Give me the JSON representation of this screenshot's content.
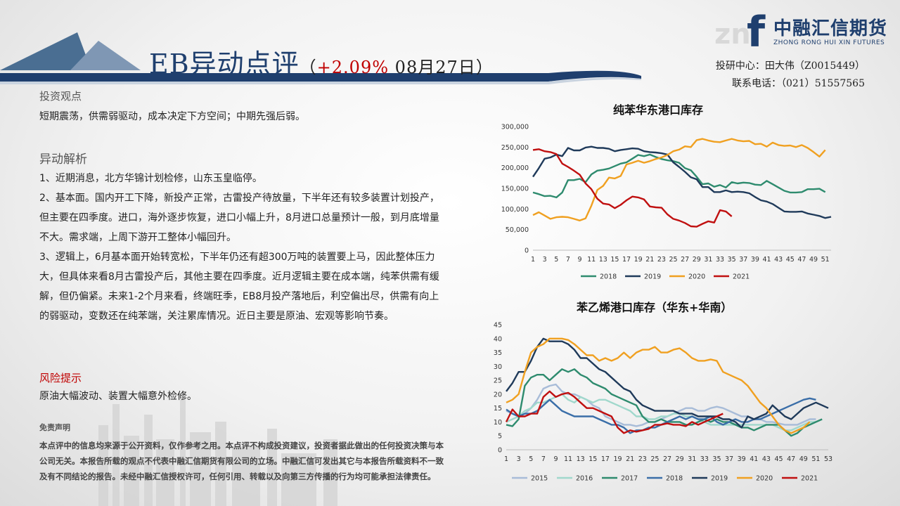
{
  "header": {
    "title": "EB异动点评",
    "paren_open": "（",
    "change": "+2.09%",
    "date": "08月27日",
    "paren_close": "）",
    "colors": {
      "navy": "#1f3f6e",
      "red": "#c00000"
    }
  },
  "logo": {
    "mark": "f",
    "watermark": "zn",
    "cn": "中融汇信期货",
    "en": "ZHONG RONG HUI XIN FUTURES"
  },
  "contact": {
    "line1": "投研中心：田大伟（Z0015449）",
    "line2": "联系电话：（021）51557565"
  },
  "view": {
    "heading": "投资观点",
    "text": "短期震荡，供需弱驱动，成本决定下方空间；中期先强后弱。"
  },
  "analysis": {
    "heading": "异动解析",
    "p1": "1、近期消息，北方华锦计划检修，山东玉皇临停。",
    "p2": "2、基本面。国内开工下降，新投产正常，古雷投产待放量，下半年还有较多装置计划投产，但主要在四季度。进口，海外逐步恢复，进口小幅上升，8月进口总量预计一般，到月底增量不大。需求端，上周下游开工整体小幅回升。",
    "p3": "3、逻辑上，6月基本面开始转宽松，下半年仍还有超300万吨的装置要上马，因此整体压力大，但具体来看8月古雷投产后，其他主要在四季度。近月逻辑主要在成本端，纯苯供需有缓解，但仍偏紧。未来1-2个月来看，终端旺季，EB8月投产落地后，利空偏出尽，供需有向上的弱驱动，变数还在纯苯端，关注累库情况。近日主要是原油、宏观等影响节奏。"
  },
  "risk": {
    "heading": "风险提示",
    "text": "原油大幅波动、装置大幅意外检修。"
  },
  "disclaimer": {
    "heading": "免责声明",
    "text": "本点评中的信息均来源于公开资料，仅作参考之用。本点评不构成投资建议，投资者据此做出的任何投资决策与本公司无关。本报告所载的观点不代表中融汇信期货有限公司的立场。中融汇信可发出其它与本报告所载资料不一致及有不同结论的报告。未经中融汇信授权许可，任何引用、转载以及向第三方传播的行为均可能承担法律责任。"
  },
  "chart_data": [
    {
      "type": "line",
      "title": "纯苯华东港口库存",
      "xlabel": "",
      "ylabel": "",
      "x_ticks": [
        1,
        3,
        5,
        7,
        9,
        11,
        13,
        15,
        17,
        19,
        21,
        23,
        25,
        27,
        29,
        31,
        33,
        35,
        37,
        39,
        41,
        43,
        45,
        47,
        49,
        51
      ],
      "x_range": [
        1,
        52
      ],
      "y_ticks": [
        0,
        50000,
        100000,
        150000,
        200000,
        250000,
        300000
      ],
      "y_tick_labels": [
        "0",
        "50,000",
        "100,000",
        "150,000",
        "200,000",
        "250,000",
        "300,000"
      ],
      "ylim": [
        0,
        300000
      ],
      "legend_position": "bottom",
      "series": [
        {
          "name": "2018",
          "color": "#2e8b6e",
          "values": [
            140000,
            136000,
            131000,
            132000,
            128000,
            140000,
            170000,
            170000,
            173000,
            165000,
            184000,
            193000,
            195000,
            198000,
            204000,
            210000,
            213000,
            222000,
            231000,
            228000,
            232000,
            226000,
            221000,
            218000,
            216000,
            212000,
            199000,
            194000,
            178000,
            160000,
            162000,
            154000,
            158000,
            152000,
            165000,
            162000,
            164000,
            163000,
            159000,
            158000,
            168000,
            160000,
            152000,
            144000,
            140000,
            140000,
            141000,
            148000,
            148000,
            149000,
            141000
          ]
        },
        {
          "name": "2019",
          "color": "#1f3a5a",
          "values": [
            178000,
            199000,
            222000,
            225000,
            232000,
            228000,
            248000,
            242000,
            242000,
            249000,
            251000,
            248000,
            248000,
            246000,
            240000,
            243000,
            245000,
            247000,
            246000,
            240000,
            238000,
            237000,
            235000,
            232000,
            213000,
            202000,
            190000,
            177000,
            172000,
            153000,
            153000,
            141000,
            141000,
            145000,
            141000,
            142000,
            141000,
            138000,
            129000,
            121000,
            118000,
            112000,
            103000,
            94000,
            93000,
            93000,
            94000,
            89000,
            86000,
            83000,
            78000,
            81000
          ]
        },
        {
          "name": "2020",
          "color": "#f0a020",
          "values": [
            85000,
            92000,
            84000,
            76000,
            80000,
            81000,
            80000,
            76000,
            72000,
            77000,
            108000,
            146000,
            156000,
            176000,
            174000,
            180000,
            208000,
            212000,
            217000,
            212000,
            216000,
            221000,
            225000,
            231000,
            240000,
            244000,
            252000,
            250000,
            267000,
            270000,
            266000,
            263000,
            262000,
            266000,
            270000,
            266000,
            264000,
            265000,
            257000,
            258000,
            251000,
            261000,
            255000,
            253000,
            254000,
            250000,
            255000,
            248000,
            238000,
            227000,
            243000
          ]
        },
        {
          "name": "2021",
          "color": "#c01010",
          "values": [
            243000,
            245000,
            240000,
            238000,
            233000,
            210000,
            202000,
            193000,
            183000,
            162000,
            148000,
            125000,
            113000,
            111000,
            102000,
            110000,
            121000,
            130000,
            128000,
            123000,
            106000,
            104000,
            103000,
            87000,
            76000,
            72000,
            66000,
            58000,
            57000,
            64000,
            70000,
            67000,
            97000,
            94000,
            82000
          ]
        }
      ]
    },
    {
      "type": "line",
      "title": "苯乙烯港口库存（华东+华南）",
      "xlabel": "",
      "ylabel": "",
      "x_ticks": [
        1,
        3,
        5,
        7,
        9,
        11,
        13,
        15,
        17,
        19,
        21,
        23,
        25,
        27,
        29,
        31,
        33,
        35,
        37,
        39,
        41,
        43,
        45,
        47,
        49,
        51,
        53
      ],
      "x_range": [
        1,
        53
      ],
      "y_ticks": [
        0,
        5,
        10,
        15,
        20,
        25,
        30,
        35,
        40,
        45
      ],
      "ylim": [
        0,
        45
      ],
      "legend_position": "bottom",
      "series": [
        {
          "name": "2015",
          "color": "#a8bcd8",
          "values": [
            14,
            13,
            12,
            13,
            15,
            18,
            22,
            23,
            23.5,
            21,
            20,
            20,
            19,
            18,
            16,
            15,
            12,
            11,
            10,
            9,
            9,
            8.5,
            9,
            10,
            10,
            11,
            12,
            13,
            14,
            15,
            15,
            14,
            14,
            15,
            15.5,
            15,
            14,
            13,
            12,
            12,
            11,
            11,
            10,
            10,
            9.5,
            9,
            9,
            9,
            10,
            11,
            11
          ]
        },
        {
          "name": "2016",
          "color": "#a0d8cc",
          "values": [
            10,
            11,
            12,
            14,
            15,
            17,
            17,
            18,
            19,
            20,
            18,
            17,
            19,
            18,
            17,
            18,
            18,
            17,
            16,
            15,
            14,
            12,
            12,
            11,
            11,
            12,
            12,
            13,
            13,
            12,
            12,
            11,
            10,
            9,
            9,
            9,
            9,
            9,
            9,
            9,
            9,
            9,
            9,
            9,
            8,
            7,
            7,
            8,
            9,
            10,
            10
          ]
        },
        {
          "name": "2017",
          "color": "#2e8b6e",
          "values": [
            9,
            8.5,
            11,
            23,
            26,
            27,
            27,
            25,
            27,
            29,
            28,
            29,
            27,
            26,
            24,
            23,
            22,
            20,
            19,
            18,
            17,
            16,
            12,
            10,
            10,
            11,
            10,
            10,
            10,
            9,
            9,
            10,
            11,
            10,
            11,
            10,
            10,
            9,
            8,
            8,
            7,
            8,
            9,
            9,
            9,
            7,
            5,
            6,
            8,
            9,
            10,
            11
          ]
        },
        {
          "name": "2018",
          "color": "#3a6ea8",
          "values": [
            14.5,
            13,
            12,
            13,
            13,
            14,
            16,
            18,
            16,
            14,
            13,
            12,
            12,
            12,
            12,
            11,
            10,
            9,
            9,
            8,
            6,
            7,
            7,
            8,
            8,
            9,
            10,
            11,
            12,
            11,
            12,
            11,
            11,
            12,
            10,
            9,
            10,
            11,
            10,
            10,
            11,
            11,
            12,
            13,
            14,
            15,
            16,
            17,
            18,
            18.5,
            18
          ]
        },
        {
          "name": "2019",
          "color": "#1f3a5a",
          "values": [
            21,
            24,
            28,
            28,
            32,
            37,
            40,
            39,
            39,
            39,
            38,
            36,
            33,
            33,
            31,
            29,
            28,
            26,
            24,
            22,
            21,
            18,
            16,
            15,
            14,
            14,
            14,
            14,
            13,
            13,
            13,
            12,
            12,
            12,
            12,
            11,
            11,
            10,
            8,
            12,
            11,
            12,
            13,
            16,
            14,
            12,
            11,
            13,
            15,
            16,
            17,
            16,
            15
          ]
        },
        {
          "name": "2020",
          "color": "#f0a020",
          "values": [
            17,
            18,
            20,
            28,
            35,
            37,
            38,
            40,
            40,
            40,
            39.5,
            38,
            36,
            34,
            34,
            32,
            33,
            32,
            33,
            35,
            33,
            35,
            36,
            36,
            37,
            35,
            35,
            36,
            36.5,
            35,
            33,
            32,
            32,
            32.5,
            32,
            28,
            27,
            26,
            25,
            23,
            20,
            17,
            15,
            12,
            9,
            7,
            6,
            7,
            8,
            10
          ]
        },
        {
          "name": "2021",
          "color": "#c01010",
          "values": [
            10,
            14.5,
            12,
            12,
            13,
            13,
            19,
            21,
            19,
            20,
            20.5,
            19,
            17,
            15,
            15,
            14,
            13,
            12,
            8,
            6,
            7,
            6.5,
            7,
            7.5,
            9,
            9,
            9.5,
            9,
            9,
            8.5,
            10,
            9,
            10,
            11,
            12,
            13
          ]
        }
      ]
    }
  ]
}
